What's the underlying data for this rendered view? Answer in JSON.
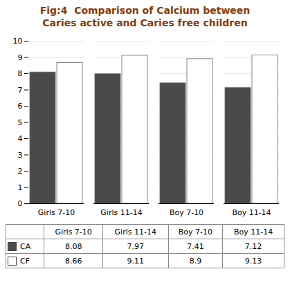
{
  "chart_data": {
    "type": "bar",
    "title": "Fig:4  Comparison of Calcium between\nCaries active and Caries free children",
    "categories": [
      "Girls 7-10",
      "Girls 11-14",
      "Boy 7-10",
      "Boy 11-14"
    ],
    "series": [
      {
        "name": "CA",
        "color": "#4a4a4a",
        "values": [
          8.08,
          7.97,
          7.41,
          7.12
        ]
      },
      {
        "name": "CF",
        "color": "#ffffff",
        "values": [
          8.66,
          9.11,
          8.9,
          9.13
        ]
      }
    ],
    "ylim": [
      0,
      10
    ],
    "yticks": [
      0,
      1,
      2,
      3,
      4,
      5,
      6,
      7,
      8,
      9,
      10
    ],
    "grid": true,
    "legend": "bottom"
  }
}
